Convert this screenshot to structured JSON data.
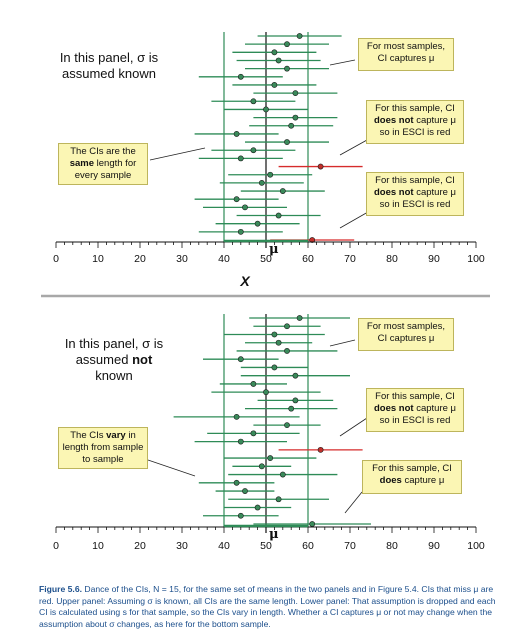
{
  "colors": {
    "ci": "#2e8b57",
    "ci_miss": "#d62b2b",
    "dot": "#3a8a5a",
    "dot_miss": "#c0302b",
    "callout_bg": "#fbf6b4",
    "caption": "#1c4f8c"
  },
  "axis": {
    "ticks": [
      "0",
      "10",
      "20",
      "30",
      "40",
      "50",
      "60",
      "70",
      "80",
      "90",
      "100"
    ],
    "xlabel": "X",
    "mu_label": "μ"
  },
  "top": {
    "note_pre": "In this panel, σ is",
    "note_post": "assumed known",
    "callouts": [
      {
        "pre": "For most samples, CI captures μ",
        "bold": "",
        "post": ""
      },
      {
        "pre": "For this sample, CI",
        "bold": "does not",
        "post": "capture μ so in ESCI is red"
      },
      {
        "pre": "The CIs are the",
        "bold": "same",
        "post": "length for every sample"
      },
      {
        "pre": "For this sample, CI",
        "bold": "does not",
        "post": "capture μ so in ESCI is red"
      }
    ]
  },
  "bottom": {
    "note_pre": "In this panel, σ is assumed",
    "note_bold": "not",
    "note_post": "known",
    "callouts": [
      {
        "pre": "For most samples, CI captures μ",
        "bold": "",
        "post": ""
      },
      {
        "pre": "For this sample, CI",
        "bold": "does not",
        "post": "capture μ so in ESCI is red"
      },
      {
        "pre": "The CIs",
        "bold": "vary",
        "post": "in length from sample to sample"
      },
      {
        "pre": "For this sample, CI",
        "bold": "does",
        "post": "capture μ"
      }
    ]
  },
  "caption": {
    "label": "Figure 5.6.",
    "text": "Dance of the CIs, N = 15, for the same set of means in the two panels and in Figure 5.4. CIs that miss μ are red. Upper panel: Assuming σ is known, all CIs are the same length. Lower panel: That assumption is dropped and each CI is calculated using s for that sample, so the CIs vary in length. Whether a CI captures μ or not may change when the assumption about σ changes, as here for the bottom sample."
  },
  "chart_data": [
    {
      "type": "scatter",
      "title": "",
      "xlabel": "X",
      "xlim": [
        0,
        100
      ],
      "mu": 50,
      "reference_lines": [
        40,
        60
      ],
      "samples": [
        {
          "mean": 58,
          "low": 48,
          "high": 68,
          "miss": false
        },
        {
          "mean": 55,
          "low": 45,
          "high": 65,
          "miss": false
        },
        {
          "mean": 52,
          "low": 42,
          "high": 62,
          "miss": false
        },
        {
          "mean": 53,
          "low": 43,
          "high": 63,
          "miss": false
        },
        {
          "mean": 55,
          "low": 45,
          "high": 65,
          "miss": false
        },
        {
          "mean": 44,
          "low": 34,
          "high": 54,
          "miss": false
        },
        {
          "mean": 52,
          "low": 42,
          "high": 62,
          "miss": false
        },
        {
          "mean": 57,
          "low": 47,
          "high": 67,
          "miss": false
        },
        {
          "mean": 47,
          "low": 37,
          "high": 57,
          "miss": false
        },
        {
          "mean": 50,
          "low": 40,
          "high": 60,
          "miss": false
        },
        {
          "mean": 57,
          "low": 47,
          "high": 67,
          "miss": false
        },
        {
          "mean": 56,
          "low": 46,
          "high": 66,
          "miss": false
        },
        {
          "mean": 43,
          "low": 33,
          "high": 53,
          "miss": false
        },
        {
          "mean": 55,
          "low": 45,
          "high": 65,
          "miss": false
        },
        {
          "mean": 47,
          "low": 37,
          "high": 57,
          "miss": false
        },
        {
          "mean": 44,
          "low": 34,
          "high": 54,
          "miss": false
        },
        {
          "mean": 63,
          "low": 53,
          "high": 73,
          "miss": true
        },
        {
          "mean": 51,
          "low": 41,
          "high": 61,
          "miss": false
        },
        {
          "mean": 49,
          "low": 39,
          "high": 59,
          "miss": false
        },
        {
          "mean": 54,
          "low": 44,
          "high": 64,
          "miss": false
        },
        {
          "mean": 43,
          "low": 33,
          "high": 53,
          "miss": false
        },
        {
          "mean": 45,
          "low": 35,
          "high": 55,
          "miss": false
        },
        {
          "mean": 53,
          "low": 43,
          "high": 63,
          "miss": false
        },
        {
          "mean": 48,
          "low": 38,
          "high": 58,
          "miss": false
        },
        {
          "mean": 44,
          "low": 34,
          "high": 54,
          "miss": false
        },
        {
          "mean": 61,
          "low": 51,
          "high": 71,
          "miss": true
        }
      ]
    },
    {
      "type": "scatter",
      "title": "",
      "xlabel": "X",
      "xlim": [
        0,
        100
      ],
      "mu": 50,
      "reference_lines": [
        40,
        60
      ],
      "samples": [
        {
          "mean": 58,
          "low": 46,
          "high": 70,
          "miss": false
        },
        {
          "mean": 55,
          "low": 47,
          "high": 63,
          "miss": false
        },
        {
          "mean": 52,
          "low": 40,
          "high": 64,
          "miss": false
        },
        {
          "mean": 53,
          "low": 45,
          "high": 61,
          "miss": false
        },
        {
          "mean": 55,
          "low": 43,
          "high": 67,
          "miss": false
        },
        {
          "mean": 44,
          "low": 35,
          "high": 53,
          "miss": false
        },
        {
          "mean": 52,
          "low": 44,
          "high": 60,
          "miss": false
        },
        {
          "mean": 57,
          "low": 44,
          "high": 70,
          "miss": false
        },
        {
          "mean": 47,
          "low": 39,
          "high": 55,
          "miss": false
        },
        {
          "mean": 50,
          "low": 37,
          "high": 63,
          "miss": false
        },
        {
          "mean": 57,
          "low": 48,
          "high": 66,
          "miss": false
        },
        {
          "mean": 56,
          "low": 45,
          "high": 67,
          "miss": false
        },
        {
          "mean": 43,
          "low": 28,
          "high": 58,
          "miss": false
        },
        {
          "mean": 55,
          "low": 47,
          "high": 63,
          "miss": false
        },
        {
          "mean": 47,
          "low": 36,
          "high": 58,
          "miss": false
        },
        {
          "mean": 44,
          "low": 33,
          "high": 55,
          "miss": false
        },
        {
          "mean": 63,
          "low": 53,
          "high": 73,
          "miss": true
        },
        {
          "mean": 51,
          "low": 40,
          "high": 62,
          "miss": false
        },
        {
          "mean": 49,
          "low": 42,
          "high": 56,
          "miss": false
        },
        {
          "mean": 54,
          "low": 41,
          "high": 67,
          "miss": false
        },
        {
          "mean": 43,
          "low": 34,
          "high": 52,
          "miss": false
        },
        {
          "mean": 45,
          "low": 38,
          "high": 52,
          "miss": false
        },
        {
          "mean": 53,
          "low": 41,
          "high": 65,
          "miss": false
        },
        {
          "mean": 48,
          "low": 40,
          "high": 56,
          "miss": false
        },
        {
          "mean": 44,
          "low": 35,
          "high": 53,
          "miss": false
        },
        {
          "mean": 61,
          "low": 47,
          "high": 75,
          "miss": false
        }
      ]
    }
  ]
}
